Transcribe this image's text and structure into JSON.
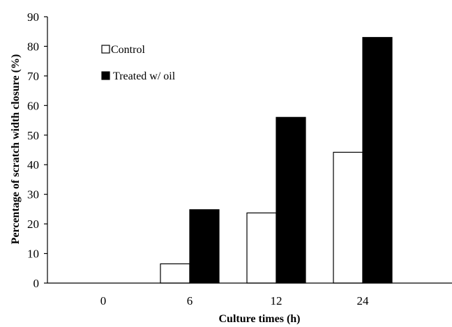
{
  "chart_data": {
    "type": "bar",
    "xlabel": "Culture times (h)",
    "ylabel": "Percentage of scratch width closure (%)",
    "ylim": [
      0,
      90
    ],
    "yticks": [
      0,
      10,
      20,
      30,
      40,
      50,
      60,
      70,
      80,
      90
    ],
    "categories": [
      "0",
      "6",
      "12",
      "24"
    ],
    "series": [
      {
        "name": "Control",
        "values": [
          0,
          6.5,
          23.7,
          44.2
        ],
        "fill": "#ffffff",
        "stroke": "#000000"
      },
      {
        "name": "Treated w/ oil",
        "values": [
          0,
          24.8,
          56.0,
          83.0
        ],
        "fill": "#000000",
        "stroke": "#000000"
      }
    ],
    "legend_position": "top-left",
    "grid": false
  }
}
